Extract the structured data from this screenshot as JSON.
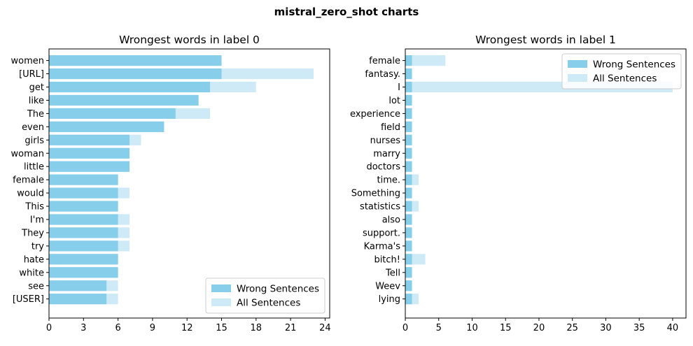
{
  "suptitle": "mistral_zero_shot charts",
  "colors": {
    "wrong": "#87ceeb",
    "all": "#cfeaf7"
  },
  "chart_data": [
    {
      "type": "bar",
      "orientation": "horizontal",
      "title": "Wrongest words in label 0",
      "xlabel": "",
      "ylabel": "",
      "xlim": [
        0,
        24.4
      ],
      "xticks": [
        0,
        3,
        6,
        9,
        12,
        15,
        18,
        21,
        24
      ],
      "categories": [
        "women",
        "[URL]",
        "get",
        "like",
        "The",
        "even",
        "girls",
        "woman",
        "little",
        "female",
        "would",
        "This",
        "I'm",
        "They",
        "try",
        "hate",
        "white",
        "see",
        "[USER]"
      ],
      "series": [
        {
          "name": "Wrong Sentences",
          "values": [
            15,
            15,
            14,
            13,
            11,
            10,
            7,
            7,
            7,
            6,
            6,
            6,
            6,
            6,
            6,
            6,
            6,
            5,
            5
          ]
        },
        {
          "name": "All Sentences",
          "values": [
            15,
            23,
            18,
            13,
            14,
            10,
            8,
            7,
            7,
            6,
            7,
            6,
            7,
            7,
            7,
            6,
            6,
            6,
            6
          ]
        }
      ],
      "legend": "lower right",
      "grid": false
    },
    {
      "type": "bar",
      "orientation": "horizontal",
      "title": "Wrongest words in label 1",
      "xlabel": "",
      "ylabel": "",
      "xlim": [
        0,
        42
      ],
      "xticks": [
        0,
        5,
        10,
        15,
        20,
        25,
        30,
        35,
        40
      ],
      "categories": [
        "female",
        "fantasy.",
        "I",
        "lot",
        "experience",
        "field",
        "nurses",
        "marry",
        "doctors",
        "time.",
        "Something",
        "statistics",
        "also",
        "support.",
        "Karma's",
        "bitch!",
        "Tell",
        "Weev",
        "lying"
      ],
      "series": [
        {
          "name": "Wrong Sentences",
          "values": [
            1,
            1,
            1,
            1,
            1,
            1,
            1,
            1,
            1,
            1,
            1,
            1,
            1,
            1,
            1,
            1,
            1,
            1,
            1
          ]
        },
        {
          "name": "All Sentences",
          "values": [
            6,
            1,
            40,
            1,
            1,
            1,
            1,
            1,
            1,
            2,
            1,
            2,
            1,
            1,
            1,
            3,
            1,
            1,
            2
          ]
        }
      ],
      "legend": "upper right",
      "grid": false
    }
  ]
}
